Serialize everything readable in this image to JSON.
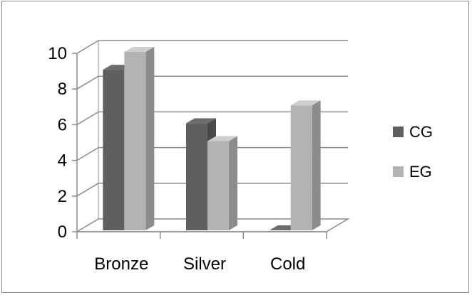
{
  "chart_data": {
    "type": "bar",
    "categories": [
      "Bronze",
      "Silver",
      "Cold"
    ],
    "series": [
      {
        "name": "CG",
        "values": [
          9,
          6,
          0
        ],
        "color": "#5f5f5f"
      },
      {
        "name": "EG",
        "values": [
          10,
          5,
          7
        ],
        "color": "#b3b3b3"
      }
    ],
    "ylim": [
      0,
      10
    ],
    "yticks": [
      0,
      2,
      4,
      6,
      8,
      10
    ],
    "grid": true,
    "legend_position": "right",
    "style": "3d-column"
  }
}
